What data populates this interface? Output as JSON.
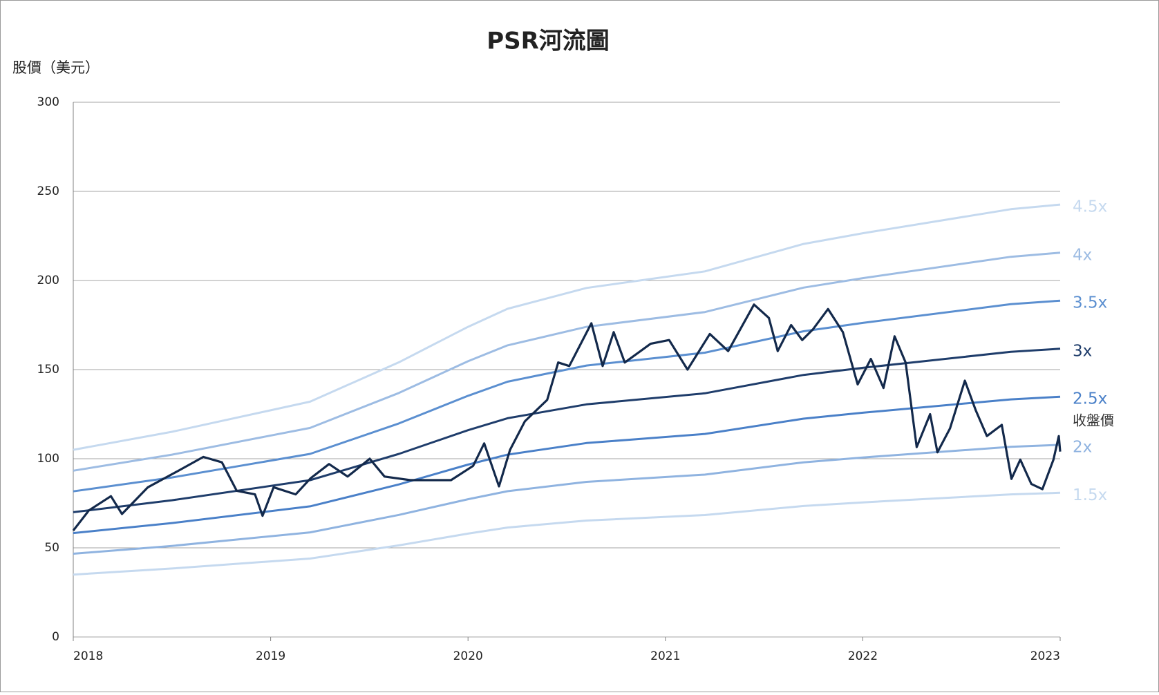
{
  "chart_data": {
    "type": "line",
    "title": "PSR河流圖",
    "y_label": "股價（美元）",
    "xlim": [
      2018,
      2023
    ],
    "xticks": [
      2018,
      2019,
      2020,
      2021,
      2022,
      2023
    ],
    "ylim": [
      0,
      300
    ],
    "yticks": [
      0,
      50,
      100,
      150,
      200,
      250,
      300
    ],
    "grid": true,
    "series": [
      {
        "name": "4.5x",
        "color": "#c5d9ef",
        "x": [
          2018,
          2018.5,
          2019.2,
          2019.65,
          2020,
          2020.2,
          2020.6,
          2021.2,
          2021.7,
          2022,
          2022.75,
          2023
        ],
        "values": [
          105,
          115.1,
          132,
          154.1,
          174,
          184.1,
          195.8,
          205.1,
          220.5,
          226.5,
          240,
          242.6
        ]
      },
      {
        "name": "4x",
        "color": "#9dbce3",
        "x": [
          2018,
          2018.5,
          2019.2,
          2019.65,
          2020,
          2020.2,
          2020.6,
          2021.2,
          2021.7,
          2022,
          2022.75,
          2023
        ],
        "values": [
          93.3,
          102.3,
          117.3,
          136.9,
          154.7,
          163.6,
          174,
          182.3,
          196,
          201.3,
          213.3,
          215.6
        ]
      },
      {
        "name": "3.5x",
        "color": "#5b8fd0",
        "x": [
          2018,
          2018.5,
          2019.2,
          2019.65,
          2020,
          2020.2,
          2020.6,
          2021.2,
          2021.7,
          2022,
          2022.75,
          2023
        ],
        "values": [
          81.7,
          89.5,
          102.7,
          119.8,
          135.3,
          143.2,
          152.3,
          159.5,
          171.5,
          176.2,
          186.7,
          188.7
        ]
      },
      {
        "name": "3x",
        "color": "#1f3d6b",
        "x": [
          2018,
          2018.5,
          2019.2,
          2019.65,
          2020,
          2020.2,
          2020.6,
          2021.2,
          2021.7,
          2022,
          2022.75,
          2023
        ],
        "values": [
          70,
          76.7,
          88,
          102.7,
          116,
          122.7,
          130.5,
          136.7,
          147,
          151,
          160,
          161.7
        ]
      },
      {
        "name": "2.5x",
        "color": "#4a80c8",
        "x": [
          2018,
          2018.5,
          2019.2,
          2019.65,
          2020,
          2020.2,
          2020.6,
          2021.2,
          2021.7,
          2022,
          2022.75,
          2023
        ],
        "values": [
          58.3,
          63.9,
          73.3,
          85.6,
          96.7,
          102.3,
          108.8,
          113.9,
          122.5,
          125.8,
          133.3,
          134.8
        ]
      },
      {
        "name": "2x",
        "color": "#8fb3e0",
        "x": [
          2018,
          2018.5,
          2019.2,
          2019.65,
          2020,
          2020.2,
          2020.6,
          2021.2,
          2021.7,
          2022,
          2022.75,
          2023
        ],
        "values": [
          46.7,
          51.1,
          58.7,
          68.5,
          77.3,
          81.8,
          87,
          91.1,
          98,
          100.7,
          106.7,
          107.8
        ]
      },
      {
        "name": "1.5x",
        "color": "#c5d9ef",
        "x": [
          2018,
          2018.5,
          2019.2,
          2019.65,
          2020,
          2020.2,
          2020.6,
          2021.2,
          2021.7,
          2022,
          2022.75,
          2023
        ],
        "values": [
          35,
          38.4,
          44,
          51.4,
          58,
          61.4,
          65.3,
          68.4,
          73.5,
          75.5,
          80,
          80.9
        ]
      },
      {
        "name": "收盤價",
        "color": "#13294b",
        "label_color": "#333333",
        "x": [
          2018.0,
          2018.079,
          2018.191,
          2018.247,
          2018.378,
          2018.528,
          2018.659,
          2018.753,
          2018.828,
          2018.921,
          2018.959,
          2019.015,
          2019.127,
          2019.202,
          2019.296,
          2019.39,
          2019.502,
          2019.577,
          2019.708,
          2019.801,
          2019.914,
          2020.026,
          2020.082,
          2020.157,
          2020.213,
          2020.288,
          2020.401,
          2020.457,
          2020.513,
          2020.625,
          2020.682,
          2020.738,
          2020.794,
          2020.925,
          2021.019,
          2021.112,
          2021.225,
          2021.318,
          2021.449,
          2021.524,
          2021.569,
          2021.637,
          2021.693,
          2021.749,
          2021.824,
          2021.899,
          2021.974,
          2022.041,
          2022.105,
          2022.161,
          2022.217,
          2022.273,
          2022.341,
          2022.378,
          2022.442,
          2022.517,
          2022.573,
          2022.629,
          2022.704,
          2022.753,
          2022.798,
          2022.854,
          2022.91,
          2022.966,
          2022.993,
          2023.0
        ],
        "values": [
          59.7,
          71,
          79,
          69,
          84,
          93,
          101,
          98,
          82,
          80,
          68,
          84,
          80,
          89,
          97,
          90,
          100,
          90,
          88,
          88,
          88,
          96,
          108.6,
          84.5,
          105,
          121,
          133,
          154,
          152,
          176,
          152,
          171,
          154,
          164.5,
          166.6,
          150,
          170,
          160.4,
          186.5,
          179,
          160.4,
          175,
          166.6,
          172.8,
          184,
          171,
          141.7,
          156,
          139.7,
          168.7,
          154,
          106.5,
          125,
          103.6,
          117,
          143.8,
          127,
          112.7,
          119,
          88.7,
          99.5,
          85.8,
          82.9,
          99.5,
          112.7,
          104
        ]
      }
    ]
  }
}
